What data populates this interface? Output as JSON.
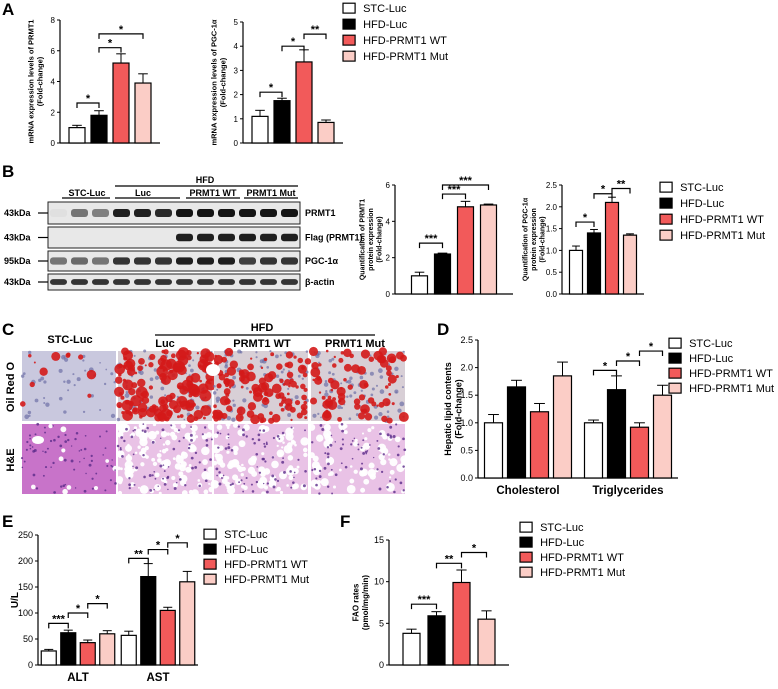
{
  "colors": {
    "stc": "#ffffff",
    "hfd": "#000000",
    "wt": "#f25a5a",
    "mut": "#fbcdc6",
    "edge": "#000000"
  },
  "legend": [
    "STC-Luc",
    "HFD-Luc",
    "HFD-PRMT1 WT",
    "HFD-PRMT1 Mut"
  ],
  "panels": {
    "A": "A",
    "B": "B",
    "C": "C",
    "D": "D",
    "E": "E",
    "F": "F"
  },
  "blot": {
    "stc_label": "STC-Luc",
    "hfd_label": "HFD",
    "luc_label": "Luc",
    "wt_label": "PRMT1 WT",
    "mut_label": "PRMT1 Mut",
    "rows": [
      {
        "kda": "43kDa",
        "name": "PRMT1"
      },
      {
        "kda": "43kDa",
        "name": "Flag (PRMT1)"
      },
      {
        "kda": "95kDa",
        "name": "PGC-1α"
      },
      {
        "kda": "43kDa",
        "name": "β-actin"
      }
    ]
  },
  "histology": {
    "stc_label": "STC-Luc",
    "hfd_label": "HFD",
    "luc_label": "Luc",
    "wt_label": "PRMT1 WT",
    "mut_label": "PRMT1 Mut",
    "row1": "Oil Red O",
    "row2": "H&E"
  },
  "chart_data": [
    {
      "id": "A1",
      "type": "bar",
      "ylabel": "mRNA expression levels of PRMT1\n(Fold-change)",
      "ylim": [
        0,
        8
      ],
      "yticks": [
        0,
        2,
        4,
        6,
        8
      ],
      "categories": [
        "STC-Luc",
        "HFD-Luc",
        "HFD-PRMT1 WT",
        "HFD-PRMT1 Mut"
      ],
      "values": [
        1.0,
        1.8,
        5.2,
        3.9
      ],
      "errors": [
        0.15,
        0.3,
        0.6,
        0.6
      ],
      "annotations": [
        {
          "from": 0,
          "to": 1,
          "y": 2.6,
          "label": "*"
        },
        {
          "from": 1,
          "to": 2,
          "y": 6.2,
          "label": "*"
        },
        {
          "from": 1,
          "to": 3,
          "y": 7.1,
          "label": "*"
        }
      ]
    },
    {
      "id": "A2",
      "type": "bar",
      "ylabel": "mRNA expression levels of PGC-1α\n(Fold-change)",
      "ylim": [
        0,
        5
      ],
      "yticks": [
        0,
        1,
        2,
        3,
        4,
        5
      ],
      "categories": [
        "STC-Luc",
        "HFD-Luc",
        "HFD-PRMT1 WT",
        "HFD-PRMT1 Mut"
      ],
      "values": [
        1.1,
        1.75,
        3.35,
        0.85
      ],
      "errors": [
        0.25,
        0.1,
        0.5,
        0.1
      ],
      "annotations": [
        {
          "from": 0,
          "to": 1,
          "y": 2.1,
          "label": "*"
        },
        {
          "from": 1,
          "to": 2,
          "y": 4.0,
          "label": "*"
        },
        {
          "from": 2,
          "to": 3,
          "y": 4.5,
          "label": "**"
        }
      ]
    },
    {
      "id": "B1",
      "type": "bar",
      "ylabel": "Quantification of PRMT1\nprotein expression\n(Fold-change)",
      "ylim": [
        0,
        6
      ],
      "yticks": [
        0,
        2,
        4,
        6
      ],
      "categories": [
        "STC-Luc",
        "HFD-Luc",
        "HFD-PRMT1 WT",
        "HFD-PRMT1 Mut"
      ],
      "values": [
        1.0,
        2.2,
        4.8,
        4.9
      ],
      "errors": [
        0.2,
        0.05,
        0.3,
        0.05
      ],
      "annotations": [
        {
          "from": 0,
          "to": 1,
          "y": 2.8,
          "label": "***"
        },
        {
          "from": 1,
          "to": 2,
          "y": 5.5,
          "label": "***"
        },
        {
          "from": 1,
          "to": 3,
          "y": 6.0,
          "label": "***"
        }
      ]
    },
    {
      "id": "B2",
      "type": "bar",
      "ylabel": "Quantification of PGC-1α\nprotein expression\n(Fold-change)",
      "ylim": [
        0,
        2.5
      ],
      "yticks": [
        0.0,
        0.5,
        1.0,
        1.5,
        2.0,
        2.5
      ],
      "categories": [
        "STC-Luc",
        "HFD-Luc",
        "HFD-PRMT1 WT",
        "HFD-PRMT1 Mut"
      ],
      "values": [
        1.0,
        1.4,
        2.1,
        1.35
      ],
      "errors": [
        0.1,
        0.08,
        0.12,
        0.03
      ],
      "annotations": [
        {
          "from": 0,
          "to": 1,
          "y": 1.65,
          "label": "*"
        },
        {
          "from": 1,
          "to": 2,
          "y": 2.3,
          "label": "*"
        },
        {
          "from": 2,
          "to": 3,
          "y": 2.42,
          "label": "**"
        }
      ]
    },
    {
      "id": "D",
      "type": "bar",
      "ylabel": "Hepatic lipid contents\n(Fold-change)",
      "ylim": [
        0,
        2.5
      ],
      "yticks": [
        0.0,
        0.5,
        1.0,
        1.5,
        2.0,
        2.5
      ],
      "categories": [
        "Cholesterol",
        "Triglycerides"
      ],
      "series": [
        {
          "name": "STC-Luc",
          "values": [
            1.0,
            1.0
          ],
          "errors": [
            0.15,
            0.05
          ]
        },
        {
          "name": "HFD-Luc",
          "values": [
            1.65,
            1.6
          ],
          "errors": [
            0.12,
            0.25
          ]
        },
        {
          "name": "HFD-PRMT1 WT",
          "values": [
            1.2,
            0.92
          ],
          "errors": [
            0.15,
            0.08
          ]
        },
        {
          "name": "HFD-PRMT1 Mut",
          "values": [
            1.85,
            1.5
          ],
          "errors": [
            0.25,
            0.18
          ]
        }
      ],
      "annotations": [
        {
          "group": 1,
          "from": 0,
          "to": 1,
          "y": 1.95,
          "label": "*"
        },
        {
          "group": 1,
          "from": 1,
          "to": 2,
          "y": 2.12,
          "label": "*"
        },
        {
          "group": 1,
          "from": 2,
          "to": 3,
          "y": 2.3,
          "label": "*"
        }
      ]
    },
    {
      "id": "E",
      "type": "bar",
      "ylabel": "U/L",
      "ylim": [
        0,
        250
      ],
      "yticks": [
        0,
        50,
        100,
        150,
        200,
        250
      ],
      "categories": [
        "ALT",
        "AST"
      ],
      "series": [
        {
          "name": "STC-Luc",
          "values": [
            27,
            57
          ],
          "errors": [
            3,
            8
          ]
        },
        {
          "name": "HFD-Luc",
          "values": [
            62,
            170
          ],
          "errors": [
            5,
            25
          ]
        },
        {
          "name": "HFD-PRMT1 WT",
          "values": [
            43,
            105
          ],
          "errors": [
            5,
            6
          ]
        },
        {
          "name": "HFD-PRMT1 Mut",
          "values": [
            60,
            160
          ],
          "errors": [
            6,
            20
          ]
        }
      ],
      "annotations": [
        {
          "group": 0,
          "from": 0,
          "to": 1,
          "y": 80,
          "label": "***"
        },
        {
          "group": 0,
          "from": 1,
          "to": 2,
          "y": 100,
          "label": "*"
        },
        {
          "group": 0,
          "from": 2,
          "to": 3,
          "y": 118,
          "label": "*"
        },
        {
          "group": 1,
          "from": 0,
          "to": 1,
          "y": 205,
          "label": "**"
        },
        {
          "group": 1,
          "from": 1,
          "to": 2,
          "y": 222,
          "label": "*"
        },
        {
          "group": 1,
          "from": 2,
          "to": 3,
          "y": 235,
          "label": "*"
        }
      ]
    },
    {
      "id": "F",
      "type": "bar",
      "ylabel": "FAO rates\n(pmol/mg/min)",
      "ylim": [
        0,
        15
      ],
      "yticks": [
        0,
        5,
        10,
        15
      ],
      "categories": [
        "STC-Luc",
        "HFD-Luc",
        "HFD-PRMT1 WT",
        "HFD-PRMT1 Mut"
      ],
      "values": [
        3.8,
        5.9,
        9.9,
        5.5
      ],
      "errors": [
        0.5,
        0.5,
        1.5,
        1.0
      ],
      "annotations": [
        {
          "from": 0,
          "to": 1,
          "y": 7.3,
          "label": "***"
        },
        {
          "from": 1,
          "to": 2,
          "y": 12.2,
          "label": "**"
        },
        {
          "from": 2,
          "to": 3,
          "y": 13.5,
          "label": "*"
        }
      ]
    }
  ]
}
